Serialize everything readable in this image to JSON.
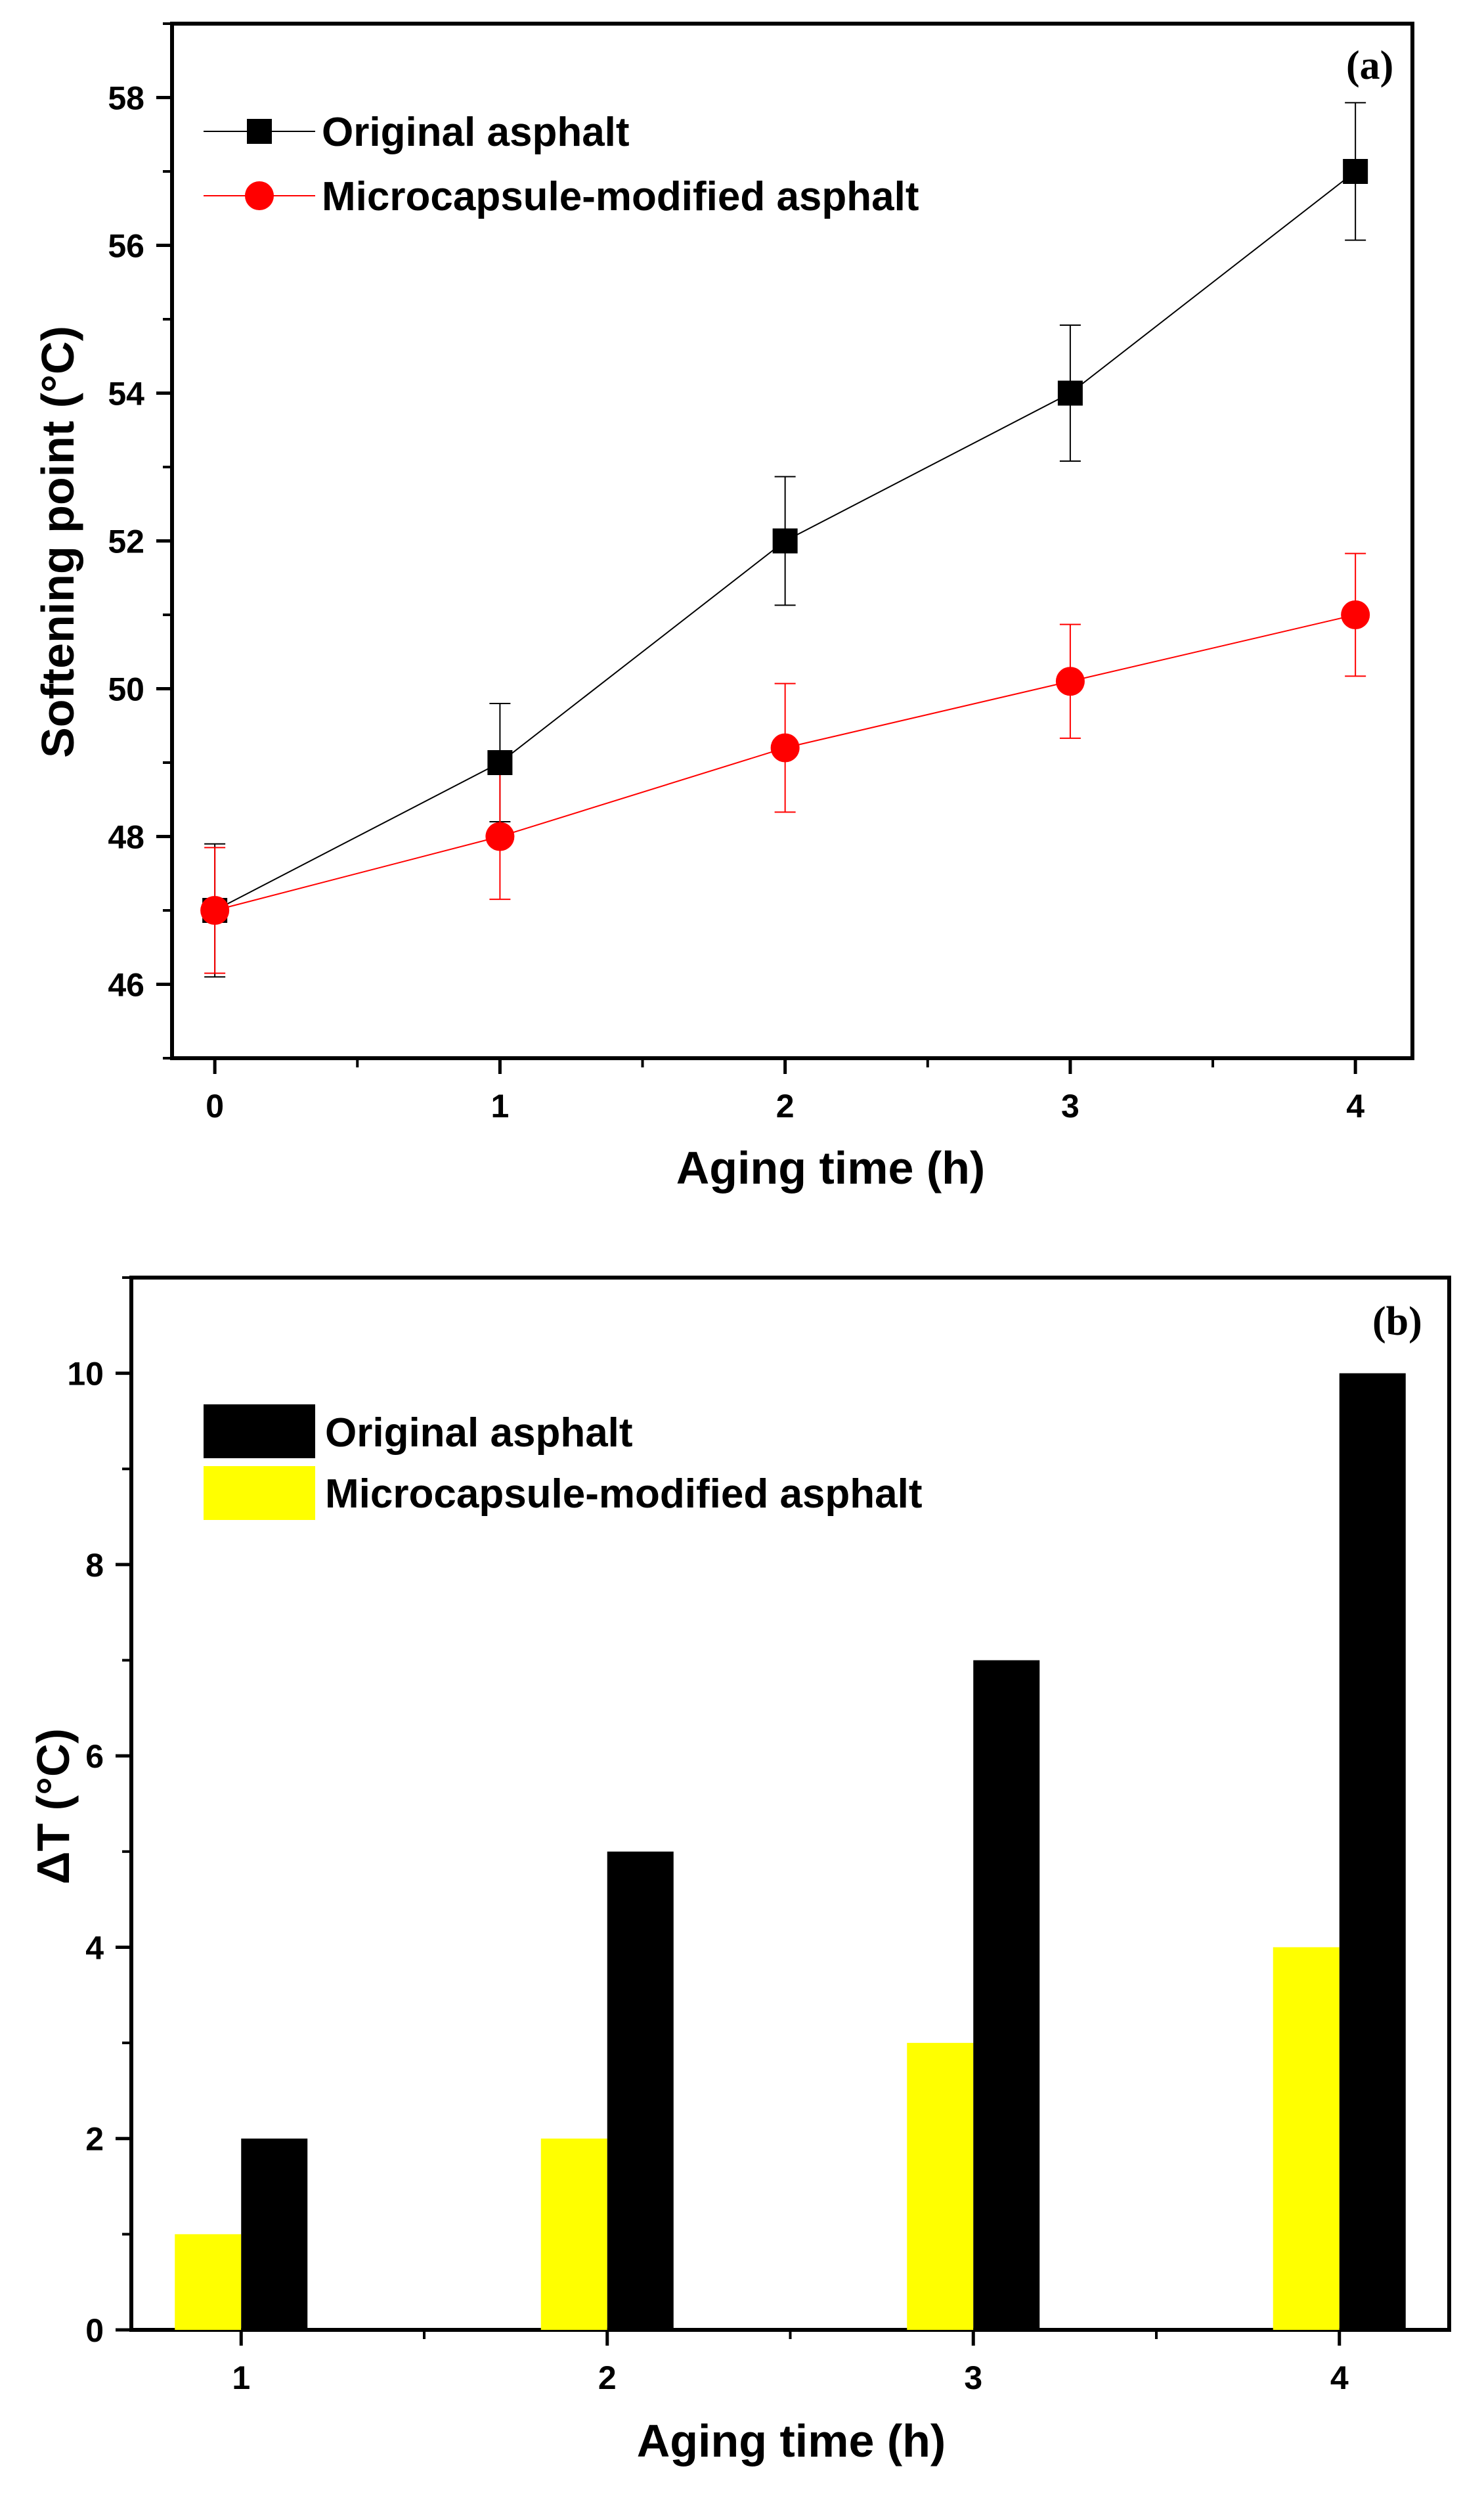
{
  "chart_data": [
    {
      "type": "line",
      "panel_label": "(a)",
      "xlabel": "Aging time (h)",
      "ylabel": "Softening point (°C)",
      "x": [
        0,
        1,
        2,
        3,
        4
      ],
      "xlim": [
        -0.15,
        4.2
      ],
      "ylim": [
        45,
        59
      ],
      "x_ticks": [
        "0",
        "1",
        "2",
        "3",
        "4"
      ],
      "y_ticks": [
        "46",
        "48",
        "50",
        "52",
        "54",
        "56",
        "58"
      ],
      "legend_position": "top-left",
      "series": [
        {
          "name": "Original asphalt",
          "color": "#000000",
          "marker": "square",
          "values": [
            47,
            49,
            52,
            54,
            57
          ],
          "error": [
            0.9,
            0.8,
            0.87,
            0.92,
            0.93
          ]
        },
        {
          "name": "Microcapsule-modified asphalt",
          "color": "#ff0000",
          "marker": "circle",
          "values": [
            47,
            48,
            49.2,
            50.1,
            51
          ],
          "error": [
            0.85,
            0.85,
            0.87,
            0.77,
            0.83
          ]
        }
      ]
    },
    {
      "type": "bar",
      "panel_label": "(b)",
      "xlabel": "Aging time (h)",
      "ylabel": "ΔT (°C)",
      "categories": [
        "1",
        "2",
        "3",
        "4"
      ],
      "ylim": [
        0,
        11
      ],
      "y_ticks": [
        "0",
        "2",
        "4",
        "6",
        "8",
        "10"
      ],
      "legend_position": "top-left",
      "series": [
        {
          "name": "Original asphalt",
          "color": "#000000",
          "values": [
            2,
            5,
            7,
            10
          ]
        },
        {
          "name": "Microcapsule-modified asphalt",
          "color": "#ffff00",
          "values": [
            1,
            2,
            3,
            4
          ]
        }
      ]
    }
  ]
}
